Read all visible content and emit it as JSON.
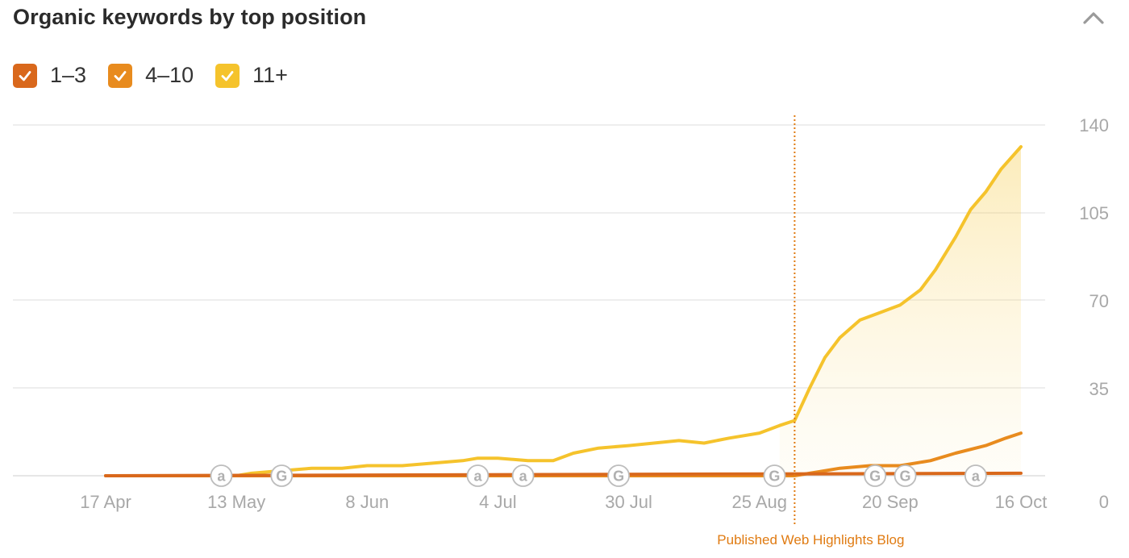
{
  "header": {
    "title": "Organic keywords by top position",
    "collapse_icon": "chevron-up-icon"
  },
  "legend": [
    {
      "label": "1–3",
      "color": "#d9681c",
      "checked": true
    },
    {
      "label": "4–10",
      "color": "#e88b1e",
      "checked": true
    },
    {
      "label": "11+",
      "color": "#f5c32c",
      "checked": true
    }
  ],
  "chart_data": {
    "type": "area",
    "title": "Organic keywords by top position",
    "x_tick_labels": [
      "17 Apr",
      "13 May",
      "8 Jun",
      "4 Jul",
      "30 Jul",
      "25 Aug",
      "20 Sep",
      "16 Oct"
    ],
    "y_tick_labels": [
      "0",
      "35",
      "70",
      "105",
      "140"
    ],
    "ylim": [
      0,
      140
    ],
    "xlim": [
      "17 Apr",
      "16 Oct"
    ],
    "grid": true,
    "y_axis_side": "right",
    "series": [
      {
        "name": "11+",
        "color": "#f5c32c",
        "fill": true,
        "points": [
          [
            "17 Apr",
            0
          ],
          [
            "27 Apr",
            0
          ],
          [
            "5 May",
            0
          ],
          [
            "13 May",
            0
          ],
          [
            "16 May",
            1
          ],
          [
            "22 May",
            2
          ],
          [
            "28 May",
            3
          ],
          [
            "3 Jun",
            3
          ],
          [
            "8 Jun",
            4
          ],
          [
            "15 Jun",
            4
          ],
          [
            "21 Jun",
            5
          ],
          [
            "27 Jun",
            6
          ],
          [
            "30 Jun",
            7
          ],
          [
            "4 Jul",
            7
          ],
          [
            "10 Jul",
            6
          ],
          [
            "15 Jul",
            6
          ],
          [
            "19 Jul",
            9
          ],
          [
            "24 Jul",
            11
          ],
          [
            "30 Jul",
            12
          ],
          [
            "4 Aug",
            13
          ],
          [
            "9 Aug",
            14
          ],
          [
            "14 Aug",
            13
          ],
          [
            "19 Aug",
            15
          ],
          [
            "25 Aug",
            17
          ],
          [
            "29 Aug",
            20
          ],
          [
            "1 Sep",
            22
          ],
          [
            "4 Sep",
            35
          ],
          [
            "7 Sep",
            47
          ],
          [
            "10 Sep",
            55
          ],
          [
            "14 Sep",
            62
          ],
          [
            "18 Sep",
            65
          ],
          [
            "22 Sep",
            68
          ],
          [
            "26 Sep",
            74
          ],
          [
            "29 Sep",
            82
          ],
          [
            "3 Oct",
            95
          ],
          [
            "6 Oct",
            106
          ],
          [
            "9 Oct",
            113
          ],
          [
            "12 Oct",
            122
          ],
          [
            "16 Oct",
            131
          ]
        ]
      },
      {
        "name": "4–10",
        "color": "#e88b1e",
        "fill": false,
        "points": [
          [
            "17 Apr",
            0
          ],
          [
            "1 Sep",
            0
          ],
          [
            "4 Sep",
            1
          ],
          [
            "10 Sep",
            3
          ],
          [
            "16 Sep",
            4
          ],
          [
            "22 Sep",
            4
          ],
          [
            "28 Sep",
            6
          ],
          [
            "3 Oct",
            9
          ],
          [
            "9 Oct",
            12
          ],
          [
            "13 Oct",
            15
          ],
          [
            "16 Oct",
            17
          ]
        ]
      },
      {
        "name": "1–3",
        "color": "#d9681c",
        "fill": false,
        "points": [
          [
            "17 Apr",
            0
          ],
          [
            "16 Oct",
            1
          ]
        ]
      }
    ],
    "annotations": [
      {
        "type": "vertical-line",
        "x": "1 Sep",
        "label": "Published Web Highlights Blog",
        "color": "#e07b12",
        "style": "dotted"
      }
    ],
    "markers": [
      {
        "x": "10 May",
        "letter": "a"
      },
      {
        "x": "22 May",
        "letter": "G"
      },
      {
        "x": "30 Jun",
        "letter": "a"
      },
      {
        "x": "9 Jul",
        "letter": "a"
      },
      {
        "x": "28 Jul",
        "letter": "G"
      },
      {
        "x": "28 Aug",
        "letter": "G"
      },
      {
        "x": "17 Sep",
        "letter": "G"
      },
      {
        "x": "23 Sep",
        "letter": "G"
      },
      {
        "x": "7 Oct",
        "letter": "a"
      }
    ]
  }
}
